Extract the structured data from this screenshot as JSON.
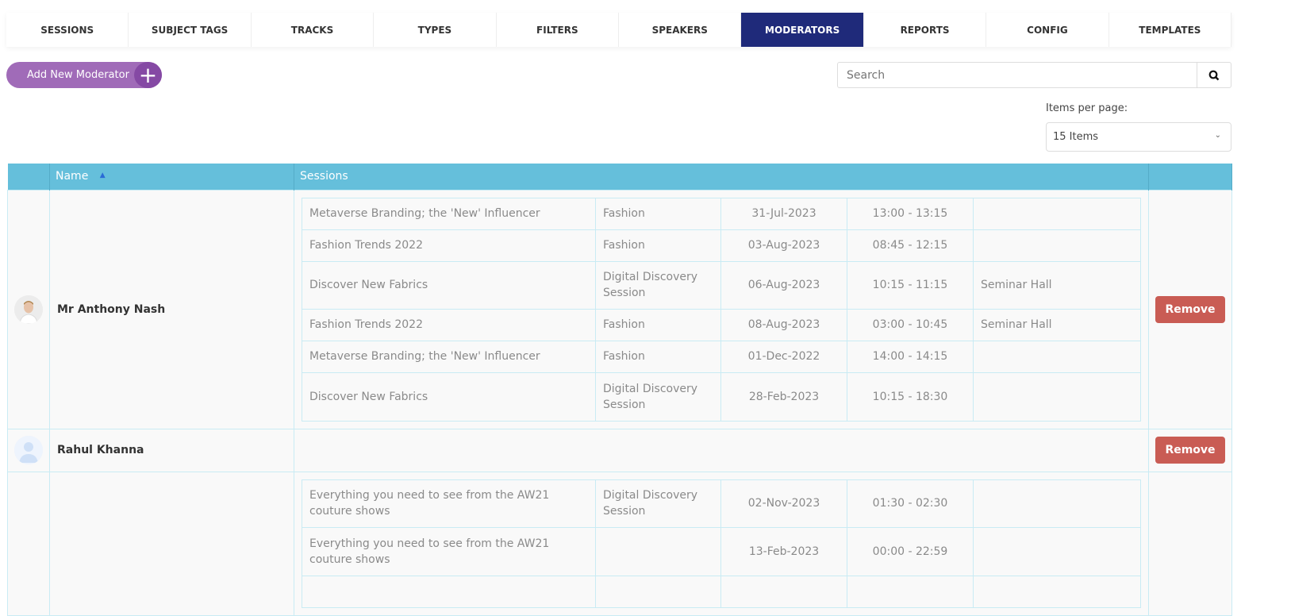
{
  "tabs": [
    "SESSIONS",
    "SUBJECT TAGS",
    "TRACKS",
    "TYPES",
    "FILTERS",
    "SPEAKERS",
    "MODERATORS",
    "REPORTS",
    "CONFIG",
    "TEMPLATES"
  ],
  "active_tab": "MODERATORS",
  "add_button": "Add New Moderator",
  "search": {
    "placeholder": "Search",
    "value": ""
  },
  "items_per_page": {
    "label": "Items per page:",
    "selected": "15 Items"
  },
  "table": {
    "headers": {
      "name": "Name",
      "sessions": "Sessions"
    },
    "remove_label": "Remove",
    "moderators": [
      {
        "name": "Mr Anthony Nash",
        "sessions": [
          [
            "Metaverse Branding; the 'New' Influencer",
            "Fashion",
            "31-Jul-2023",
            "13:00 - 13:15",
            ""
          ],
          [
            "Fashion Trends 2022",
            "Fashion",
            "03-Aug-2023",
            "08:45 - 12:15",
            ""
          ],
          [
            "Discover New Fabrics",
            "Digital Discovery Session",
            "06-Aug-2023",
            "10:15 - 11:15",
            "Seminar Hall"
          ],
          [
            "Fashion Trends 2022",
            "Fashion",
            "08-Aug-2023",
            "03:00 - 10:45",
            "Seminar Hall"
          ],
          [
            "Metaverse Branding; the 'New' Influencer",
            "Fashion",
            "01-Dec-2022",
            "14:00 - 14:15",
            ""
          ],
          [
            "Discover New Fabrics",
            "Digital Discovery Session",
            "28-Feb-2023",
            "10:15 - 18:30",
            ""
          ]
        ]
      },
      {
        "name": "Rahul Khanna",
        "sessions": []
      },
      {
        "name": "",
        "sessions": [
          [
            "Everything you need to see from the AW21 couture shows",
            "Digital Discovery Session",
            "02-Nov-2023",
            "01:30 - 02:30",
            ""
          ],
          [
            "Everything you need to see from the AW21 couture shows",
            "",
            "13-Feb-2023",
            "00:00 - 22:59",
            ""
          ],
          [
            "",
            "",
            "",
            "",
            ""
          ]
        ]
      }
    ]
  },
  "colors": {
    "active_tab": "#1f2a7a",
    "header": "#65bfdb",
    "add_button": "#a06bb8",
    "remove": "#c95c54"
  }
}
